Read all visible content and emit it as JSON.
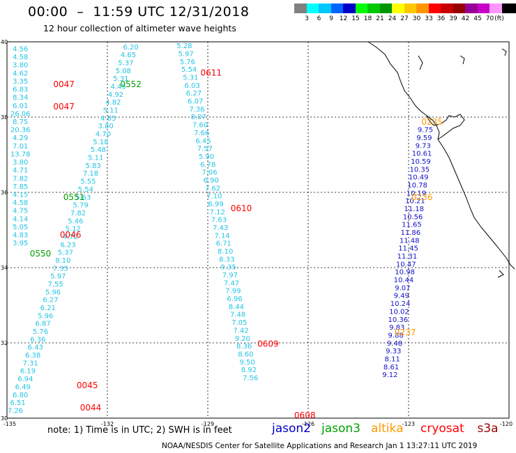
{
  "header": {
    "title": "00:00  –  11:59 UTC 12/31/2018",
    "subtitle": "12 hour collection of altimeter wave heights"
  },
  "scale": {
    "unit": "(ft)",
    "labels": [
      "3",
      "6",
      "9",
      "12",
      "15",
      "18",
      "21",
      "24",
      "27",
      "30",
      "33",
      "36",
      "39",
      "42",
      "45",
      "70"
    ],
    "colors": [
      "#808080",
      "#00ffff",
      "#00c8ff",
      "#0064ff",
      "#0000c8",
      "#00ff00",
      "#00c800",
      "#009600",
      "#ffff00",
      "#ffc800",
      "#ff9600",
      "#ff0000",
      "#c80000",
      "#960000",
      "#960096",
      "#c800c8",
      "#ff96ff",
      "#000000"
    ]
  },
  "axes": {
    "lat_labels": [
      "40",
      "38",
      "36",
      "34",
      "32",
      "30"
    ],
    "lon_labels": [
      "-135",
      "-132",
      "-129",
      "-126",
      "-123",
      "-120"
    ]
  },
  "chart_data": {
    "type": "map",
    "lon_range": [
      -135,
      -120
    ],
    "lat_range": [
      30,
      40
    ],
    "passes": [
      {
        "sat": "jason3",
        "time": "0552",
        "lon": -131.3,
        "lat": 38.8
      },
      {
        "sat": "cryosat",
        "time": "0047",
        "lon": -133.3,
        "lat": 38.8
      },
      {
        "sat": "cryosat",
        "time": "0047",
        "lon": -133.3,
        "lat": 38.2
      },
      {
        "sat": "cryosat",
        "time": "0611",
        "lon": -128.9,
        "lat": 39.1
      },
      {
        "sat": "altika",
        "time": "0235",
        "lon": -122.3,
        "lat": 37.8
      },
      {
        "sat": "jason3",
        "time": "0551",
        "lon": -133.0,
        "lat": 35.8
      },
      {
        "sat": "cryosat",
        "time": "0610",
        "lon": -128.0,
        "lat": 35.5
      },
      {
        "sat": "altika",
        "time": "0236",
        "lon": -122.6,
        "lat": 35.8
      },
      {
        "sat": "cryosat",
        "time": "0046",
        "lon": -133.1,
        "lat": 34.8
      },
      {
        "sat": "jason3",
        "time": "0550",
        "lon": -134.0,
        "lat": 34.3
      },
      {
        "sat": "cryosat",
        "time": "0609",
        "lon": -127.2,
        "lat": 31.9
      },
      {
        "sat": "altika",
        "time": "0237",
        "lon": -123.1,
        "lat": 32.2
      },
      {
        "sat": "cryosat",
        "time": "0045",
        "lon": -132.6,
        "lat": 30.8
      },
      {
        "sat": "cryosat",
        "time": "0044",
        "lon": -132.5,
        "lat": 30.2
      },
      {
        "sat": "cryosat",
        "time": "0608",
        "lon": -126.1,
        "lat": 30.0
      }
    ],
    "tracks": [
      {
        "name": "track-a",
        "color": "#22c4e4",
        "lon0": -134.6,
        "lat0": 39.75,
        "dlon": 0.0,
        "dlat": -0.215,
        "values": [
          "4.56",
          "4.58",
          "3.80",
          "4.62",
          "3.35",
          "6.83",
          "8.34",
          "6.01",
          "26.06",
          "8.75",
          "20.36",
          "4.29",
          "7.01",
          "13.78",
          "3.80",
          "4.71",
          "7.82",
          "7.85",
          "4.15",
          "4.58",
          "4.75",
          "4.14",
          "5.05",
          "4.83",
          "3.95"
        ]
      },
      {
        "name": "track-b",
        "color": "#22c4e4",
        "lon0": -131.3,
        "lat0": 39.8,
        "dlon": -0.075,
        "dlat": -0.21,
        "values": [
          "6.20",
          "4.65",
          "5.37",
          "5.08",
          "5.31",
          "4.45",
          "4.92",
          "4.82",
          "5.11",
          "4.83",
          "3.80",
          "4.70",
          "5.18",
          "5.48",
          "5.11",
          "5.83",
          "7.18",
          "5.55",
          "5.54",
          "5.63",
          "5.79",
          "7.82",
          "5.46",
          "5.12",
          "4.72",
          "6.23",
          "5.37",
          "8.10",
          "7.35",
          "5.97",
          "7.55",
          "5.96",
          "6.27",
          "6.21",
          "5.96",
          "6.87",
          "5.76",
          "6.36",
          "6.43",
          "6.38",
          "7.31",
          "6.19",
          "6.94",
          "6.49",
          "6.80",
          "6.51",
          "7.26"
        ]
      },
      {
        "name": "track-c",
        "color": "#22c4e4",
        "lon0": -129.7,
        "lat0": 39.83,
        "dlon": 0.047,
        "dlat": -0.21,
        "values": [
          "5.28",
          "5.97",
          "5.76",
          "5.54",
          "5.31",
          "6.03",
          "6.27",
          "6.07",
          "7.36",
          "8.07",
          "7.60",
          "7.66",
          "6.45",
          "7.57",
          "5.90",
          "6.78",
          "7.06",
          "6.90",
          "7.62",
          "7.10",
          "6.99",
          "7.12",
          "7.63",
          "7.43",
          "7.14",
          "6.71",
          "8.10",
          "8.33",
          "9.35",
          "7.97",
          "7.47",
          "7.99",
          "6.96",
          "8.44",
          "7.48",
          "7.05",
          "7.42",
          "9.20",
          "8.36",
          "8.60",
          "9.50",
          "8.92",
          "7.56"
        ]
      },
      {
        "name": "track-d",
        "color": "#1010c8",
        "lon0": -122.5,
        "lat0": 37.6,
        "dlon": -0.034,
        "dlat": -0.21,
        "values": [
          "9.75",
          "9.59",
          "9.73",
          "10.61",
          "10.59",
          "10.35",
          "10.49",
          "10.78",
          "10.19",
          "10.21",
          "11.18",
          "10.56",
          "11.65",
          "11.86",
          "11.48",
          "11.45",
          "11.31",
          "10.47",
          "10.98",
          "10.44",
          "9.07",
          "9.49",
          "10.24",
          "10.02",
          "10.36",
          "9.83",
          "9.88",
          "9.48",
          "9.33",
          "8.11",
          "8.61",
          "9.12"
        ]
      }
    ]
  },
  "footer": {
    "note": "note:  1) Time is in UTC; 2) SWH is in feet",
    "credit": "NOAA/NESDIS Center for Satellite Applications and Research    Jan  1 13:27:11 UTC 2019",
    "satellites": [
      {
        "name": "jason2",
        "color": "#0000cc"
      },
      {
        "name": "jason3",
        "color": "#00a000"
      },
      {
        "name": "altika",
        "color": "#ff9900"
      },
      {
        "name": "cryosat",
        "color": "#ff0000"
      },
      {
        "name": "s3a",
        "color": "#990000"
      }
    ]
  }
}
